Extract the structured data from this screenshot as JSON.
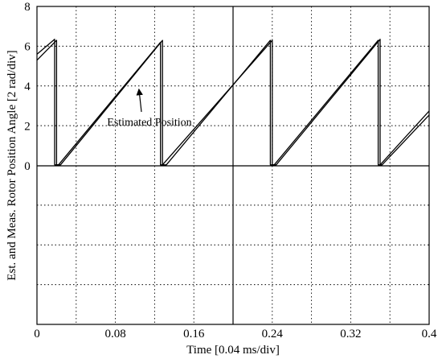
{
  "chart_data": {
    "type": "line",
    "xlabel": "Time [0.04 ms/div]",
    "ylabel": "Est. and Meas. Rotor Position Angle [2 rad/div]",
    "xlim": [
      0,
      0.4
    ],
    "ylim": [
      0,
      8
    ],
    "x_ticks": [
      "0",
      "0.08",
      "0.16",
      "0.24",
      "0.32",
      "0.4"
    ],
    "y_ticks": [
      "0",
      "2",
      "4",
      "6",
      "8"
    ],
    "grid": true,
    "lower_panel_empty": true,
    "annotations": [
      {
        "text": "Estimated Position",
        "arrow_to": {
          "x": 0.104,
          "y": 3.85
        }
      }
    ],
    "series": [
      {
        "x": [
          0,
          0.02,
          0.02,
          0.022,
          0.126,
          0.126,
          0.128,
          0.24,
          0.24,
          0.242,
          0.348,
          0.348,
          0.35,
          0.4
        ],
        "y": [
          5.3,
          6.3,
          0.05,
          0.05,
          6.2,
          0.05,
          0.05,
          6.3,
          0.05,
          0.05,
          6.3,
          0.05,
          0.05,
          2.75
        ]
      },
      {
        "x": [
          0,
          0.018,
          0.018,
          0.024,
          0.128,
          0.128,
          0.132,
          0.238,
          0.238,
          0.244,
          0.35,
          0.35,
          0.352,
          0.4
        ],
        "y": [
          5.6,
          6.35,
          0.05,
          0.05,
          6.3,
          0.05,
          0.05,
          6.3,
          0.05,
          0.05,
          6.35,
          0.05,
          0.05,
          2.55
        ]
      }
    ]
  }
}
